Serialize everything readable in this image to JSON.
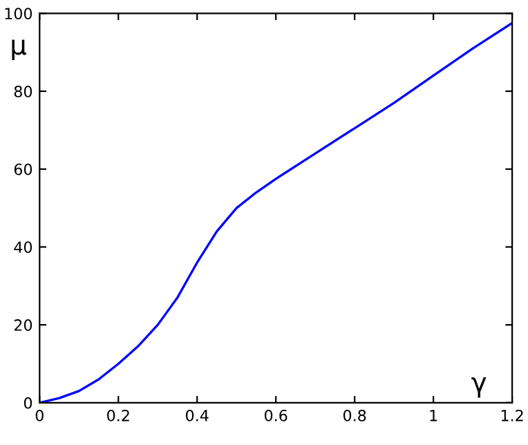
{
  "chart_data": {
    "type": "line",
    "xlabel": "γ",
    "ylabel": "μ",
    "x": [
      0,
      0.05,
      0.1,
      0.15,
      0.2,
      0.25,
      0.3,
      0.35,
      0.4,
      0.45,
      0.5,
      0.55,
      0.6,
      0.7,
      0.8,
      0.9,
      1.0,
      1.1,
      1.2
    ],
    "series": [
      {
        "color": "#0000ff",
        "values": [
          0,
          1.2,
          3,
          6,
          10,
          14.5,
          20,
          27,
          36,
          44,
          50,
          54,
          57.5,
          64,
          70.5,
          77,
          84,
          91,
          97.5
        ]
      }
    ],
    "xlim": [
      0,
      1.2
    ],
    "ylim": [
      0,
      100
    ],
    "xticks": [
      0,
      0.2,
      0.4,
      0.6,
      0.8,
      1,
      1.2
    ],
    "yticks": [
      0,
      20,
      40,
      60,
      80,
      100
    ],
    "grid": false,
    "marker": "none",
    "line_style": "solid"
  }
}
